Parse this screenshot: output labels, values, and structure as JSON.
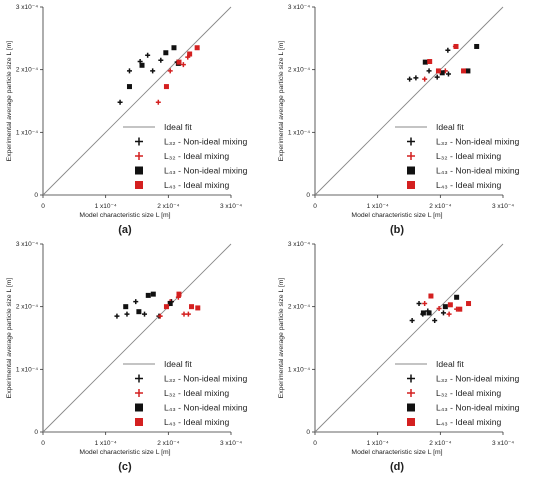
{
  "figure": {
    "xlabel": "Model characteristic size L [m]",
    "ylabel": "Experimental average particle size L [m]",
    "x_ticks": [
      "0",
      "1 x10⁻⁴",
      "2 x10⁻⁴",
      "3 x10⁻⁴"
    ],
    "y_ticks": [
      "0",
      "1 x10⁻⁴",
      "2 x10⁻⁴",
      "3 x10⁻⁴"
    ],
    "legend": [
      {
        "label": "Ideal fit",
        "marker": "line"
      },
      {
        "label": "L₃₂ - Non-ideal mixing",
        "marker": "plus-black"
      },
      {
        "label": "L₃₂ - Ideal mixing",
        "marker": "plus-red"
      },
      {
        "label": "L₄₃ - Non-ideal mixing",
        "marker": "square-black"
      },
      {
        "label": "L₄₃ - Ideal mixing",
        "marker": "square-red"
      }
    ],
    "colors": {
      "black": "#111111",
      "red": "#d42020",
      "line": "#888888"
    }
  },
  "chart_data": [
    {
      "type": "scatter",
      "panel_label": "(a)",
      "xlim": [
        0,
        0.0003
      ],
      "ylim": [
        0,
        0.0003
      ],
      "grid": false,
      "legend_position": "bottom-right",
      "series": [
        {
          "name": "L₃₂ - Non-ideal mixing",
          "x": [
            0.000123,
            0.000138,
            0.000155,
            0.000167,
            0.000175,
            0.000188,
            0.000214
          ],
          "y": [
            0.000148,
            0.000198,
            0.000213,
            0.000223,
            0.000198,
            0.000215,
            0.000212
          ]
        },
        {
          "name": "L₃₂ - Ideal mixing",
          "x": [
            0.000184,
            0.000203,
            0.000224,
            0.000231
          ],
          "y": [
            0.000148,
            0.000198,
            0.000208,
            0.00022
          ]
        },
        {
          "name": "L₄₃ - Non-ideal mixing",
          "x": [
            0.000138,
            0.000158,
            0.000196,
            0.000209,
            0.000216
          ],
          "y": [
            0.000173,
            0.000207,
            0.000227,
            0.000235,
            0.00021
          ]
        },
        {
          "name": "L₄₃ - Ideal mixing",
          "x": [
            0.000197,
            0.000217,
            0.000234,
            0.000246
          ],
          "y": [
            0.000173,
            0.000212,
            0.000225,
            0.000235
          ]
        }
      ]
    },
    {
      "type": "scatter",
      "panel_label": "(b)",
      "xlim": [
        0,
        0.0003
      ],
      "ylim": [
        0,
        0.0003
      ],
      "grid": false,
      "legend_position": "bottom-right",
      "series": [
        {
          "name": "L₃₂ - Non-ideal mixing",
          "x": [
            0.000151,
            0.000161,
            0.000182,
            0.000195,
            0.000212,
            0.000213
          ],
          "y": [
            0.000185,
            0.000187,
            0.000198,
            0.000188,
            0.000231,
            0.000193
          ]
        },
        {
          "name": "L₃₂ - Ideal mixing",
          "x": [
            0.000175,
            0.000181,
            0.000208,
            0.000224
          ],
          "y": [
            0.000185,
            0.000213,
            0.000198,
            0.000237
          ]
        },
        {
          "name": "L₄₃ - Non-ideal mixing",
          "x": [
            0.000176,
            0.000203,
            0.000244,
            0.000258
          ],
          "y": [
            0.000212,
            0.000195,
            0.000198,
            0.000237
          ]
        },
        {
          "name": "L₄₃ - Ideal mixing",
          "x": [
            0.000183,
            0.000197,
            0.000225,
            0.000237
          ],
          "y": [
            0.000213,
            0.000198,
            0.000237,
            0.000198
          ]
        }
      ]
    },
    {
      "type": "scatter",
      "panel_label": "(c)",
      "xlim": [
        0,
        0.0003
      ],
      "ylim": [
        0,
        0.0003
      ],
      "grid": false,
      "legend_position": "bottom-right",
      "series": [
        {
          "name": "L₃₂ - Non-ideal mixing",
          "x": [
            0.000118,
            0.000134,
            0.000148,
            0.000162,
            0.000185,
            0.000205
          ],
          "y": [
            0.000185,
            0.000188,
            0.000208,
            0.000188,
            0.000185,
            0.000208
          ]
        },
        {
          "name": "L₃₂ - Ideal mixing",
          "x": [
            0.000187,
            0.000203,
            0.000216,
            0.000225,
            0.000232
          ],
          "y": [
            0.000185,
            0.000208,
            0.000215,
            0.000188,
            0.000188
          ]
        },
        {
          "name": "L₄₃ - Non-ideal mixing",
          "x": [
            0.000132,
            0.000153,
            0.000168,
            0.000176,
            0.000203
          ],
          "y": [
            0.0002,
            0.000192,
            0.000218,
            0.00022,
            0.000205
          ]
        },
        {
          "name": "L₄₃ - Ideal mixing",
          "x": [
            0.000197,
            0.000217,
            0.000237,
            0.000247
          ],
          "y": [
            0.0002,
            0.00022,
            0.0002,
            0.000198
          ]
        }
      ]
    },
    {
      "type": "scatter",
      "panel_label": "(d)",
      "xlim": [
        0,
        0.0003
      ],
      "ylim": [
        0,
        0.0003
      ],
      "grid": false,
      "legend_position": "bottom-right",
      "series": [
        {
          "name": "L₃₂ - Non-ideal mixing",
          "x": [
            0.000155,
            0.000166,
            0.000172,
            0.00018,
            0.000191,
            0.000205
          ],
          "y": [
            0.000178,
            0.000205,
            0.000188,
            0.000193,
            0.000178,
            0.00019
          ]
        },
        {
          "name": "L₃₂ - Ideal mixing",
          "x": [
            0.000175,
            0.000198,
            0.000214,
            0.000226
          ],
          "y": [
            0.000205,
            0.000197,
            0.000188,
            0.000196
          ]
        },
        {
          "name": "L₄₃ - Non-ideal mixing",
          "x": [
            0.000173,
            0.000182,
            0.000208,
            0.000226
          ],
          "y": [
            0.00019,
            0.00019,
            0.0002,
            0.000215
          ]
        },
        {
          "name": "L₄₃ - Ideal mixing",
          "x": [
            0.000185,
            0.000216,
            0.000231,
            0.000245
          ],
          "y": [
            0.000217,
            0.000203,
            0.000196,
            0.000205
          ]
        }
      ]
    }
  ]
}
